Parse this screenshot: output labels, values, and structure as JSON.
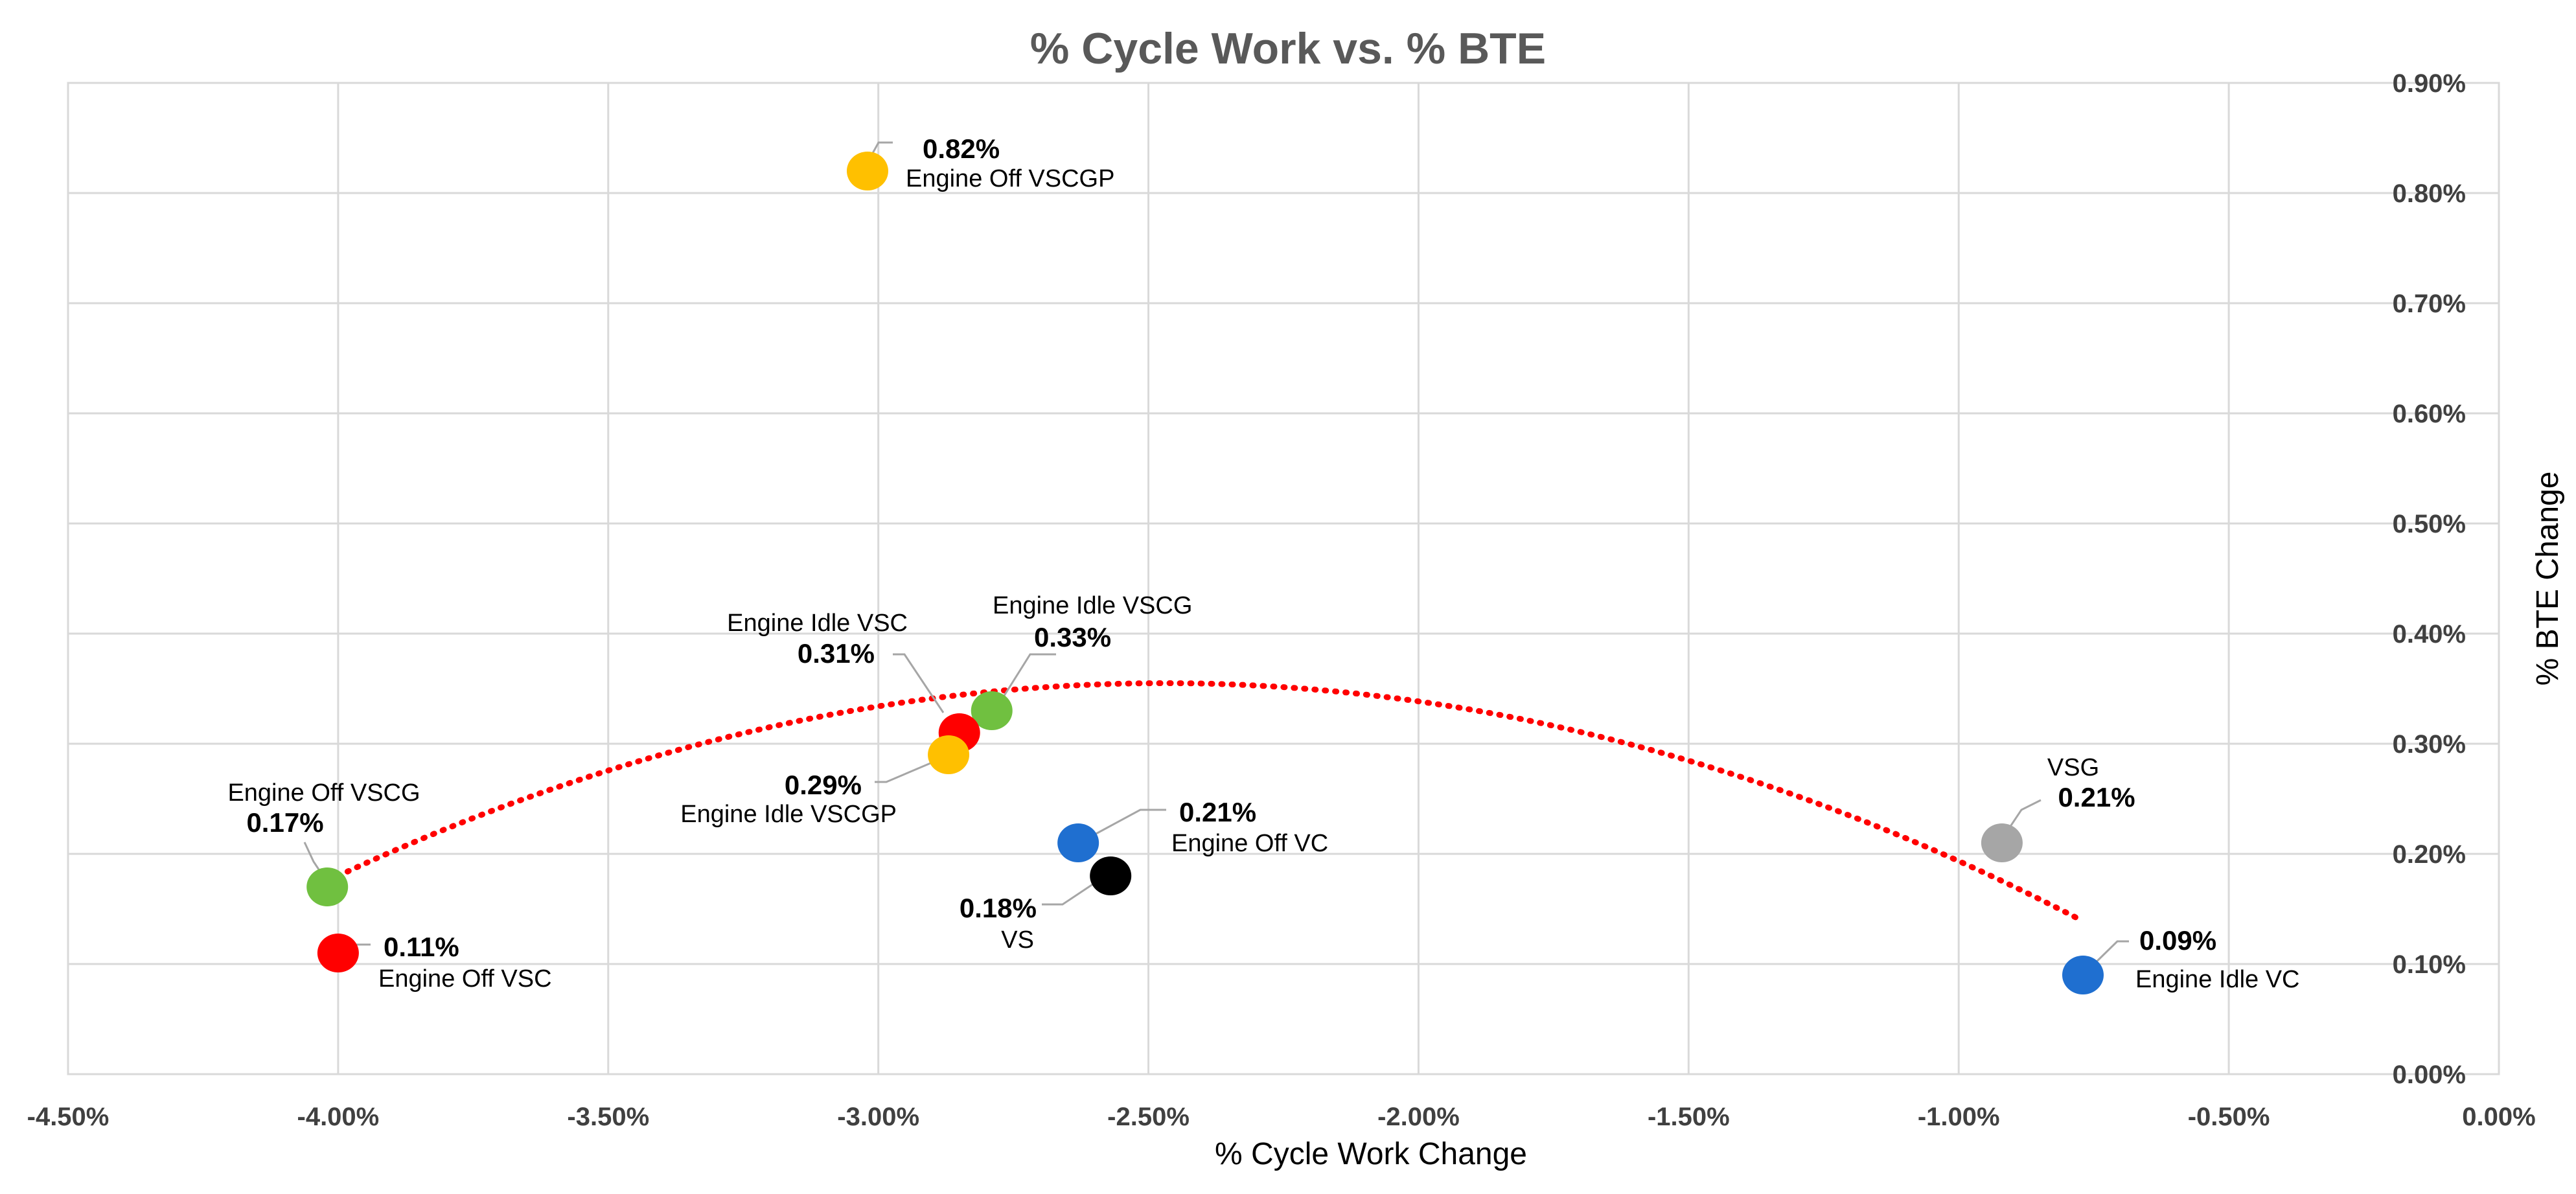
{
  "chart_data": {
    "type": "scatter",
    "title": "% Cycle Work vs. % BTE",
    "xlabel": "% Cycle Work Change",
    "ylabel": "% BTE Change",
    "xlim": [
      -4.5,
      0.0
    ],
    "ylim": [
      0.0,
      0.9
    ],
    "x_ticks": [
      "-4.50%",
      "-4.00%",
      "-3.50%",
      "-3.00%",
      "-2.50%",
      "-2.00%",
      "-1.50%",
      "-1.00%",
      "-0.50%",
      "0.00%"
    ],
    "y_ticks": [
      "0.00%",
      "0.10%",
      "0.20%",
      "0.30%",
      "0.40%",
      "0.50%",
      "0.60%",
      "0.70%",
      "0.80%",
      "0.90%"
    ],
    "y_axis_position": "right",
    "grid": true,
    "points": [
      {
        "name": "Engine Off VSCGP",
        "value_label": "0.82%",
        "x": -3.02,
        "y": 0.82,
        "color": "#FFC000"
      },
      {
        "name": "Engine Idle VSCG",
        "value_label": "0.33%",
        "x": -2.79,
        "y": 0.33,
        "color": "#70C040"
      },
      {
        "name": "Engine Idle VSC",
        "value_label": "0.31%",
        "x": -2.85,
        "y": 0.31,
        "color": "#FF0000"
      },
      {
        "name": "Engine Idle VSCGP",
        "value_label": "0.29%",
        "x": -2.87,
        "y": 0.29,
        "color": "#FFC000"
      },
      {
        "name": "Engine Off VSCG",
        "value_label": "0.17%",
        "x": -4.02,
        "y": 0.17,
        "color": "#70C040"
      },
      {
        "name": "Engine Off VSC",
        "value_label": "0.11%",
        "x": -4.0,
        "y": 0.11,
        "color": "#FF0000"
      },
      {
        "name": "Engine Off VC",
        "value_label": "0.21%",
        "x": -2.63,
        "y": 0.21,
        "color": "#1F6FD0"
      },
      {
        "name": "VS",
        "value_label": "0.18%",
        "x": -2.57,
        "y": 0.18,
        "color": "#000000"
      },
      {
        "name": "VSG",
        "value_label": "0.21%",
        "x": -0.92,
        "y": 0.21,
        "color": "#A6A6A6"
      },
      {
        "name": "Engine Idle VC",
        "value_label": "0.09%",
        "x": -0.77,
        "y": 0.09,
        "color": "#1F6FD0"
      }
    ],
    "trendline": {
      "style": "dotted",
      "color": "#FF0000",
      "type": "polynomial",
      "x_range": [
        -4.0,
        -0.77
      ],
      "peak": {
        "x": -2.47,
        "y": 0.355
      },
      "start_y": 0.18
    }
  }
}
